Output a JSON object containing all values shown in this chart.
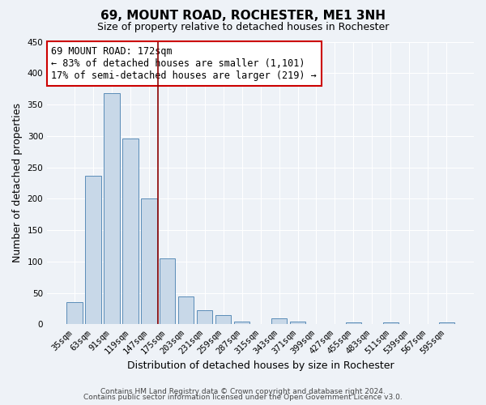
{
  "title": "69, MOUNT ROAD, ROCHESTER, ME1 3NH",
  "subtitle": "Size of property relative to detached houses in Rochester",
  "xlabel": "Distribution of detached houses by size in Rochester",
  "ylabel": "Number of detached properties",
  "bar_color": "#c8d8e8",
  "bar_edge_color": "#5b8db8",
  "categories": [
    "35sqm",
    "63sqm",
    "91sqm",
    "119sqm",
    "147sqm",
    "175sqm",
    "203sqm",
    "231sqm",
    "259sqm",
    "287sqm",
    "315sqm",
    "343sqm",
    "371sqm",
    "399sqm",
    "427sqm",
    "455sqm",
    "483sqm",
    "511sqm",
    "539sqm",
    "567sqm",
    "595sqm"
  ],
  "values": [
    35,
    236,
    368,
    296,
    200,
    105,
    45,
    23,
    15,
    5,
    0,
    10,
    5,
    0,
    0,
    3,
    0,
    3,
    0,
    0,
    3
  ],
  "ylim": [
    0,
    450
  ],
  "yticks": [
    0,
    50,
    100,
    150,
    200,
    250,
    300,
    350,
    400,
    450
  ],
  "red_line_index": 4,
  "annotation_title": "69 MOUNT ROAD: 172sqm",
  "annotation_line1": "← 83% of detached houses are smaller (1,101)",
  "annotation_line2": "17% of semi-detached houses are larger (219) →",
  "footer1": "Contains HM Land Registry data © Crown copyright and database right 2024.",
  "footer2": "Contains public sector information licensed under the Open Government Licence v3.0.",
  "bg_color": "#eef2f7",
  "grid_color": "#ffffff",
  "title_fontsize": 11,
  "subtitle_fontsize": 9,
  "axis_label_fontsize": 9,
  "tick_fontsize": 7.5,
  "annotation_fontsize": 8.5,
  "footer_fontsize": 6.5
}
